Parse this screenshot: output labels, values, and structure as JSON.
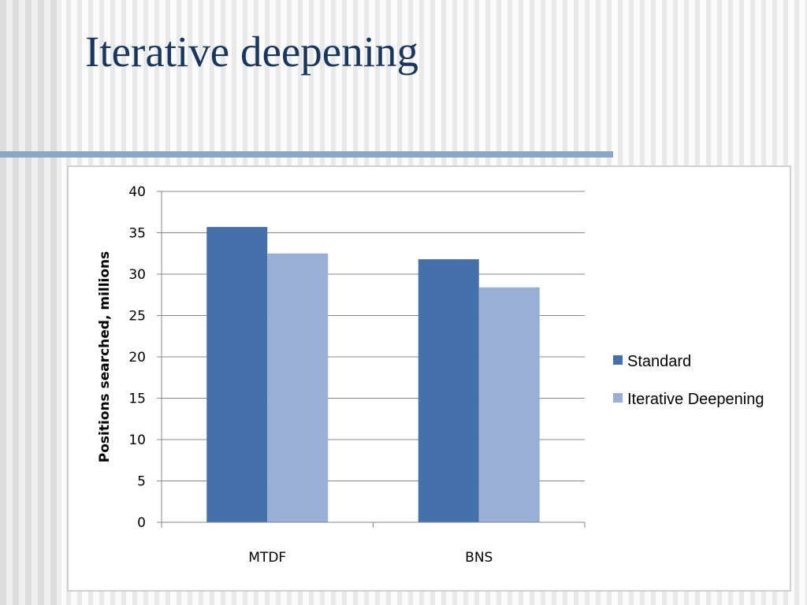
{
  "slide": {
    "title": "Iterative deepening"
  },
  "chart_data": {
    "type": "bar",
    "categories": [
      "MTDF",
      "BNS"
    ],
    "series": [
      {
        "name": "Standard",
        "values": [
          35.7,
          31.8
        ],
        "color": "#4571ab"
      },
      {
        "name": "Iterative Deepening",
        "values": [
          32.5,
          28.4
        ],
        "color": "#9aafd6"
      }
    ],
    "ylabel": "Positions searched, millions",
    "xlabel": "",
    "ylim": [
      0,
      40
    ],
    "yticks": [
      "0",
      "5",
      "10",
      "15",
      "20",
      "25",
      "30",
      "35",
      "40"
    ],
    "grid": true,
    "legend_position": "right"
  }
}
